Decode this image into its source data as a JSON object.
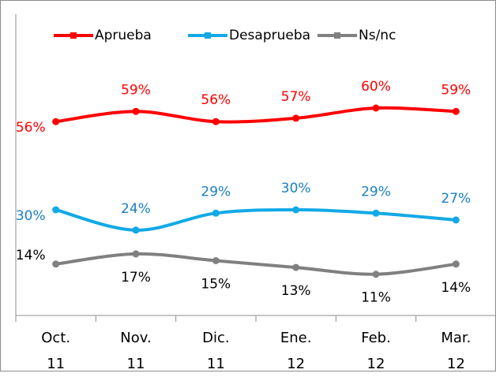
{
  "chart_data": {
    "type": "line",
    "categories": [
      "Oct. 11",
      "Nov. 11",
      "Dic. 11",
      "Ene. 12",
      "Feb. 12",
      "Mar. 12"
    ],
    "series": [
      {
        "name": "Aprueba",
        "color": "#ff0000",
        "values": [
          56,
          59,
          56,
          57,
          60,
          59
        ],
        "value_labels": [
          "56%",
          "59%",
          "56%",
          "57%",
          "60%",
          "59%"
        ]
      },
      {
        "name": "Desaprueba",
        "color": "#12a9e6",
        "values": [
          30,
          24,
          29,
          30,
          29,
          27
        ],
        "value_labels": [
          "30%",
          "24%",
          "29%",
          "30%",
          "29%",
          "27%"
        ]
      },
      {
        "name": "Ns/nc",
        "color": "#808080",
        "values": [
          14,
          17,
          15,
          13,
          11,
          14
        ],
        "value_labels": [
          "14%",
          "17%",
          "15%",
          "13%",
          "11%",
          "14%"
        ]
      }
    ],
    "ylim": [
      0,
      70
    ],
    "legend": "top"
  }
}
